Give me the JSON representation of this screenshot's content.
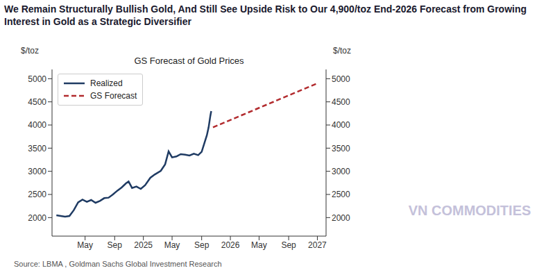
{
  "title": "We Remain Structurally Bullish Gold, And Still See Upside Risk to Our 4,900/toz End-2026 Forecast from Growing Interest in Gold as a Strategic Diversifier",
  "source": "Source: LBMA , Goldman Sachs Global Investment Research",
  "watermark": "VN COMMODITIES",
  "chart_data": {
    "type": "line",
    "title": "GS Forecast of Gold Prices",
    "y_label": "$/toz",
    "y2_label": "$/toz",
    "x": [
      2024.0,
      2024.05,
      2024.1,
      2024.15,
      2024.2,
      2024.25,
      2024.3,
      2024.35,
      2024.4,
      2024.45,
      2024.5,
      2024.55,
      2024.6,
      2024.65,
      2024.7,
      2024.75,
      2024.8,
      2024.83,
      2024.87,
      2024.92,
      2024.97,
      2025.02,
      2025.08,
      2025.13,
      2025.2,
      2025.25,
      2025.29,
      2025.33,
      2025.38,
      2025.43,
      2025.48,
      2025.53,
      2025.58,
      2025.63,
      2025.67,
      2025.7,
      2025.73,
      2025.75,
      2025.77,
      2025.78,
      2025.8,
      2027.0
    ],
    "series": [
      {
        "name": "Realized",
        "color": "#1f3b63",
        "line_style": "solid",
        "values": [
          2050,
          2035,
          2020,
          2035,
          2160,
          2330,
          2390,
          2340,
          2380,
          2320,
          2360,
          2420,
          2430,
          2500,
          2580,
          2650,
          2740,
          2780,
          2640,
          2670,
          2620,
          2700,
          2860,
          2930,
          3010,
          3150,
          3430,
          3300,
          3320,
          3370,
          3360,
          3340,
          3380,
          3350,
          3420,
          3600,
          3780,
          3950,
          4200,
          4300,
          null,
          null
        ]
      },
      {
        "name": "GS Forecast",
        "color": "#b22b2e",
        "line_style": "dashed",
        "values": [
          null,
          null,
          null,
          null,
          null,
          null,
          null,
          null,
          null,
          null,
          null,
          null,
          null,
          null,
          null,
          null,
          null,
          null,
          null,
          null,
          null,
          null,
          null,
          null,
          null,
          null,
          null,
          null,
          null,
          null,
          null,
          null,
          null,
          null,
          null,
          null,
          null,
          null,
          null,
          null,
          3950,
          4900
        ]
      }
    ],
    "xlim": [
      2023.95,
      2027.1
    ],
    "xticks": [
      {
        "value": 2024.33,
        "label": "May"
      },
      {
        "value": 2024.67,
        "label": "Sep"
      },
      2025,
      {
        "value": 2025.33,
        "label": "May"
      },
      {
        "value": 2025.67,
        "label": "Sep"
      },
      2026,
      {
        "value": 2026.33,
        "label": "May"
      },
      {
        "value": 2026.67,
        "label": "Sep"
      },
      2027
    ],
    "ylim": [
      1600,
      5200
    ],
    "yticks": [
      2000,
      2500,
      3000,
      3500,
      4000,
      4500,
      5000
    ],
    "y2lim": [
      1600,
      5200
    ],
    "y2ticks": [
      2000,
      2500,
      3000,
      3500,
      4000,
      4500,
      5000
    ],
    "grid": false,
    "legend": "upper left"
  }
}
